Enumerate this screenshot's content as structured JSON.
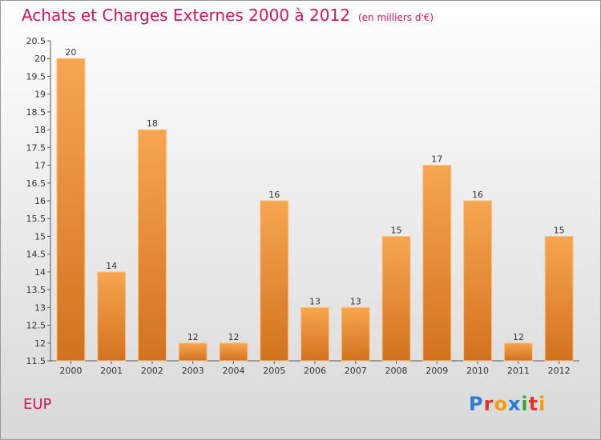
{
  "header": {
    "title": "Achats et Charges Externes 2000 à 2012",
    "units": "(en milliers d'€)"
  },
  "footer": {
    "location": "EUP",
    "logo_text": "Proxiti"
  },
  "colors": {
    "title": "#d4145a",
    "bar_top": "#f7a650",
    "bar_bottom": "#d2721f",
    "logo": [
      "#2e7bd6",
      "#e0322e",
      "#f39c12",
      "#2e7bd6",
      "#3aa63a",
      "#e0322e",
      "#f39c12"
    ]
  },
  "chart_data": {
    "type": "bar",
    "categories": [
      "2000",
      "2001",
      "2002",
      "2003",
      "2004",
      "2005",
      "2006",
      "2007",
      "2008",
      "2009",
      "2010",
      "2011",
      "2012"
    ],
    "values": [
      20,
      14,
      18,
      12,
      12,
      16,
      13,
      13,
      15,
      17,
      16,
      12,
      15
    ],
    "title": "Achats et Charges Externes 2000 à 2012",
    "xlabel": "",
    "ylabel": "",
    "ylim": [
      11.5,
      20.5
    ],
    "yticks": [
      "11.5",
      "12",
      "12.5",
      "13",
      "13.5",
      "14",
      "14.5",
      "15",
      "15.5",
      "16",
      "16.5",
      "17",
      "17.5",
      "18",
      "18.5",
      "19",
      "19.5",
      "20",
      "20.5"
    ],
    "grid": false,
    "legend": "none"
  }
}
